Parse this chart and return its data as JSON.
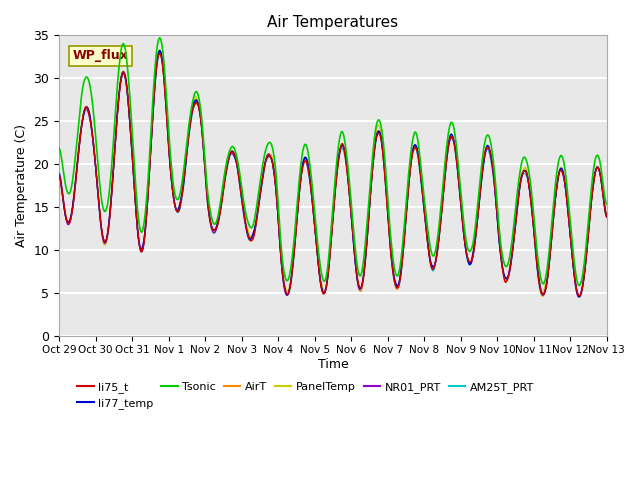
{
  "title": "Air Temperatures",
  "xlabel": "Time",
  "ylabel": "Air Temperature (C)",
  "ylim": [
    0,
    35
  ],
  "xlim_days": [
    0,
    15
  ],
  "background_color": "#ffffff",
  "plot_bg_color": "#e8e8e8",
  "grid_color": "#ffffff",
  "series": {
    "li75_t": {
      "color": "#cc0000",
      "lw": 1.0
    },
    "li77_temp": {
      "color": "#0000cc",
      "lw": 1.0
    },
    "Tsonic": {
      "color": "#00cc00",
      "lw": 1.2
    },
    "AirT": {
      "color": "#ff8800",
      "lw": 1.0
    },
    "PanelTemp": {
      "color": "#cccc00",
      "lw": 1.0
    },
    "NR01_PRT": {
      "color": "#9900cc",
      "lw": 1.0
    },
    "AM25T_PRT": {
      "color": "#00cccc",
      "lw": 1.0
    }
  },
  "x_tick_labels": [
    "Oct 29",
    "Oct 30",
    "Oct 31",
    "Nov 1",
    "Nov 2",
    "Nov 3",
    "Nov 4",
    "Nov 5",
    "Nov 6",
    "Nov 7",
    "Nov 8",
    "Nov 9",
    "Nov 10",
    "Nov 11",
    "Nov 12",
    "Nov 13"
  ],
  "x_tick_positions": [
    0,
    1,
    2,
    3,
    4,
    5,
    6,
    7,
    8,
    9,
    10,
    11,
    12,
    13,
    14,
    15
  ],
  "annotation_text": "WP_flux",
  "yticks": [
    0,
    5,
    10,
    15,
    20,
    25,
    30,
    35
  ]
}
